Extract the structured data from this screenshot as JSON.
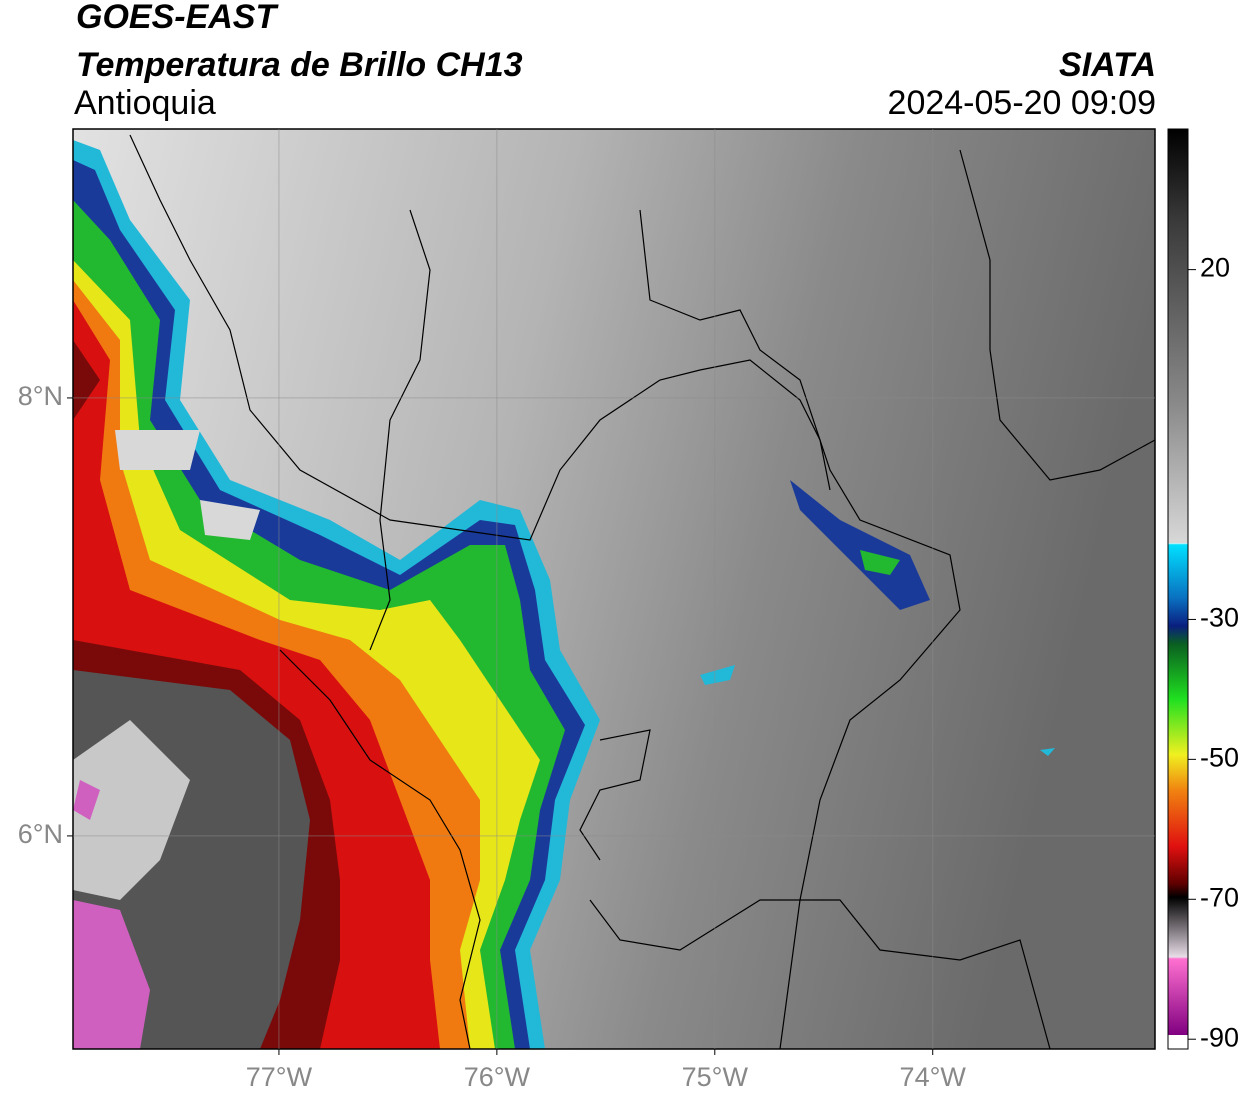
{
  "header": {
    "satellite": "GOES-EAST",
    "product": "Temperatura de Brillo CH13",
    "region": "Antioquia",
    "source": "SIATA",
    "datetime": "2024-05-20 09:09"
  },
  "map": {
    "xlim": [
      -77.945,
      -72.98
    ],
    "ylim": [
      5.027,
      9.228
    ],
    "xticks": [
      {
        "value": -77,
        "label": "77°W"
      },
      {
        "value": -76,
        "label": "76°W"
      },
      {
        "value": -75,
        "label": "75°W"
      },
      {
        "value": -74,
        "label": "74°W"
      }
    ],
    "yticks": [
      {
        "value": 6,
        "label": "6°N"
      },
      {
        "value": 8,
        "label": "8°N"
      }
    ],
    "grid": true
  },
  "colorbar": {
    "lim": [
      -91.4,
      40.1
    ],
    "ticks": [
      20,
      -30,
      -50,
      -70,
      -90
    ]
  }
}
